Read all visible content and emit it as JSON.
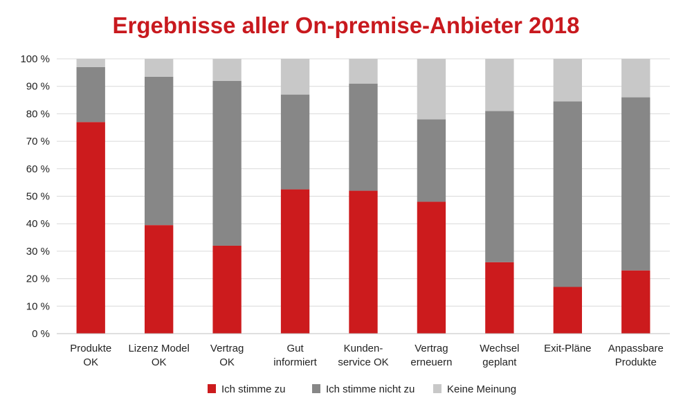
{
  "title_color": "#c8191e",
  "chart_data": {
    "type": "bar",
    "stacked": true,
    "title": "Ergebnisse aller On-premise-Anbieter 2018",
    "categories": [
      [
        "Produkte",
        "OK"
      ],
      [
        "Lizenz Model",
        "OK"
      ],
      [
        "Vertrag",
        "OK"
      ],
      [
        "Gut",
        "informiert"
      ],
      [
        "Kunden-",
        "service OK"
      ],
      [
        "Vertrag",
        "erneuern"
      ],
      [
        "Wechsel",
        "geplant"
      ],
      [
        "Exit-Pläne"
      ],
      [
        "Anpassbare",
        "Produkte"
      ]
    ],
    "series": [
      {
        "name": "Ich stimme zu",
        "color": "#cc1b1d",
        "values": [
          77,
          39.5,
          32,
          52.5,
          52,
          48,
          26,
          17,
          23
        ]
      },
      {
        "name": "Ich stimme nicht zu",
        "color": "#878787",
        "values": [
          20,
          54,
          60,
          34.5,
          39,
          30,
          55,
          67.5,
          63
        ]
      },
      {
        "name": "Keine Meinung",
        "color": "#c8c8c8",
        "values": [
          3,
          6.5,
          8,
          13,
          9,
          22,
          19,
          15.5,
          14
        ]
      }
    ],
    "ylim": [
      0,
      100
    ],
    "yticks": [
      "0 %",
      "10 %",
      "20 %",
      "30 %",
      "40 %",
      "50 %",
      "60 %",
      "70 %",
      "80 %",
      "90 %",
      "100 %"
    ],
    "grid": true,
    "legend_position": "bottom"
  }
}
